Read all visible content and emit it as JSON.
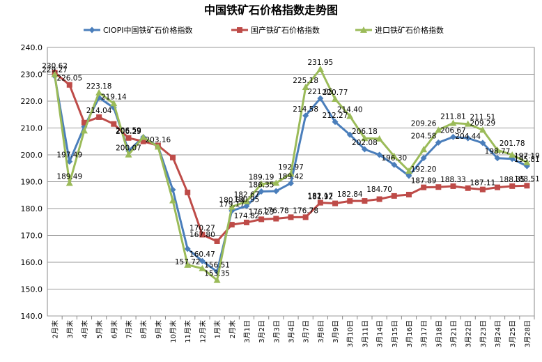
{
  "chart_data": {
    "type": "line",
    "title": "中国铁矿石价格指数走势图",
    "categories": [
      "2月末",
      "3月末",
      "4月末",
      "5月末",
      "6月末",
      "7月末",
      "8月末",
      "9月末",
      "10月末",
      "11月末",
      "12月末",
      "1月末",
      "2月末",
      "3月1日",
      "3月2日",
      "3月3日",
      "3月4日",
      "3月7日",
      "3月8日",
      "3月9日",
      "3月10日",
      "3月11日",
      "3月14日",
      "3月15日",
      "3月16日",
      "3月17日",
      "3月18日",
      "3月21日",
      "3月22日",
      "3月23日",
      "3月24日",
      "3月25日",
      "3月28日"
    ],
    "ylim": [
      140,
      240
    ],
    "yticks": [
      "140.0",
      "150.0",
      "160.0",
      "170.0",
      "180.0",
      "190.0",
      "200.0",
      "210.0",
      "220.0",
      "230.0",
      "240.0"
    ],
    "legend_position": "top",
    "grid": true,
    "series": [
      {
        "name": "CIOPI中国铁矿石价格指数",
        "color": "#4a7ebb",
        "marker": "diamond",
        "values": [
          229.27,
          197.49,
          210.5,
          221.3,
          217.5,
          201.5,
          206.59,
          203.16,
          187.0,
          165.0,
          160.47,
          156.51,
          179.17,
          180.95,
          186.35,
          186.5,
          189.42,
          214.58,
          221.05,
          212.27,
          207.5,
          202.08,
          200.0,
          196.3,
          192.2,
          198.8,
          204.58,
          206.67,
          206.2,
          204.44,
          198.77,
          198.5,
          195.81
        ]
      },
      {
        "name": "国产铁矿石价格指数",
        "color": "#be4b48",
        "marker": "square",
        "values": [
          230.62,
          226.05,
          212.0,
          214.04,
          211.5,
          206.29,
          205.0,
          203.5,
          199.0,
          186.0,
          170.27,
          167.8,
          174.0,
          174.82,
          176.0,
          176.23,
          176.78,
          176.78,
          182.17,
          181.92,
          182.8,
          182.84,
          183.5,
          184.7,
          185.2,
          187.89,
          188.0,
          188.33,
          187.6,
          187.11,
          187.9,
          188.35,
          188.51
        ]
      },
      {
        "name": "进口铁矿石价格指数",
        "color": "#9bbb59",
        "marker": "triangle",
        "values": [
          230.0,
          189.49,
          209.0,
          223.18,
          219.14,
          200.07,
          206.59,
          203.0,
          183.0,
          159.0,
          157.72,
          153.35,
          180.64,
          182.67,
          189.19,
          189.5,
          192.97,
          225.18,
          231.95,
          220.77,
          214.4,
          206.18,
          206.0,
          199.5,
          194.0,
          202.0,
          209.26,
          211.81,
          211.51,
          209.29,
          201.78,
          200.0,
          197.19
        ]
      }
    ],
    "data_labels": [
      {
        "text": "230.62",
        "x": 0,
        "y": 230.62
      },
      {
        "text": "229.27",
        "x": 0,
        "y": 229.27
      },
      {
        "text": "226.05",
        "x": 1,
        "y": 226.05
      },
      {
        "text": "197.49",
        "x": 1,
        "y": 197.49
      },
      {
        "text": "189.49",
        "x": 1,
        "y": 189.49
      },
      {
        "text": "223.18",
        "x": 3,
        "y": 223.18
      },
      {
        "text": "214.04",
        "x": 3,
        "y": 214.04
      },
      {
        "text": "219.14",
        "x": 4,
        "y": 219.14
      },
      {
        "text": "206.29",
        "x": 5,
        "y": 206.29
      },
      {
        "text": "206.59",
        "x": 5,
        "y": 206.59
      },
      {
        "text": "200.07",
        "x": 5,
        "y": 200.07
      },
      {
        "text": "203.16",
        "x": 7,
        "y": 203.16
      },
      {
        "text": "170.27",
        "x": 10,
        "y": 170.27
      },
      {
        "text": "167.80",
        "x": 10,
        "y": 167.8
      },
      {
        "text": "160.47",
        "x": 10,
        "y": 160.47
      },
      {
        "text": "157.72",
        "x": 9,
        "y": 157.72
      },
      {
        "text": "153.35",
        "x": 11,
        "y": 153.35
      },
      {
        "text": "156.51",
        "x": 11,
        "y": 156.51
      },
      {
        "text": "180.64",
        "x": 12,
        "y": 180.64
      },
      {
        "text": "179.17",
        "x": 12,
        "y": 179.17
      },
      {
        "text": "174.82",
        "x": 13,
        "y": 174.82
      },
      {
        "text": "182.67",
        "x": 13,
        "y": 182.67
      },
      {
        "text": "180.95",
        "x": 13,
        "y": 180.95
      },
      {
        "text": "186.35",
        "x": 14,
        "y": 186.35
      },
      {
        "text": "176.23",
        "x": 14,
        "y": 176.23
      },
      {
        "text": "189.19",
        "x": 14,
        "y": 189.19
      },
      {
        "text": "176.78",
        "x": 15,
        "y": 176.78
      },
      {
        "text": "192.97",
        "x": 16,
        "y": 192.97
      },
      {
        "text": "189.42",
        "x": 16,
        "y": 189.42
      },
      {
        "text": "176.78",
        "x": 17,
        "y": 176.78
      },
      {
        "text": "225.18",
        "x": 17,
        "y": 225.18
      },
      {
        "text": "214.58",
        "x": 17,
        "y": 214.58
      },
      {
        "text": "231.95",
        "x": 18,
        "y": 231.95
      },
      {
        "text": "221.05",
        "x": 18,
        "y": 221.05
      },
      {
        "text": "182.17",
        "x": 18,
        "y": 182.17
      },
      {
        "text": "181.92",
        "x": 18,
        "y": 181.92
      },
      {
        "text": "220.77",
        "x": 19,
        "y": 220.77
      },
      {
        "text": "212.27",
        "x": 19,
        "y": 212.27
      },
      {
        "text": "214.40",
        "x": 20,
        "y": 214.4
      },
      {
        "text": "182.84",
        "x": 20,
        "y": 182.84
      },
      {
        "text": "206.18",
        "x": 21,
        "y": 206.18
      },
      {
        "text": "202.08",
        "x": 21,
        "y": 202.08
      },
      {
        "text": "196.30",
        "x": 23,
        "y": 196.3
      },
      {
        "text": "184.70",
        "x": 22,
        "y": 184.7
      },
      {
        "text": "192.20",
        "x": 25,
        "y": 192.2
      },
      {
        "text": "187.89",
        "x": 25,
        "y": 187.89
      },
      {
        "text": "209.26",
        "x": 25,
        "y": 209.26
      },
      {
        "text": "204.58",
        "x": 25,
        "y": 204.58
      },
      {
        "text": "211.81",
        "x": 27,
        "y": 211.81
      },
      {
        "text": "206.67",
        "x": 27,
        "y": 206.67
      },
      {
        "text": "188.33",
        "x": 27,
        "y": 188.33
      },
      {
        "text": "204.44",
        "x": 28,
        "y": 204.44
      },
      {
        "text": "211.51",
        "x": 29,
        "y": 211.51
      },
      {
        "text": "209.29",
        "x": 29,
        "y": 209.29
      },
      {
        "text": "187.11",
        "x": 29,
        "y": 187.11
      },
      {
        "text": "198.77",
        "x": 30,
        "y": 198.77
      },
      {
        "text": "201.78",
        "x": 31,
        "y": 201.78
      },
      {
        "text": "188.35",
        "x": 31,
        "y": 188.35
      },
      {
        "text": "197.19",
        "x": 32,
        "y": 197.19
      },
      {
        "text": "195.81",
        "x": 32,
        "y": 195.81
      },
      {
        "text": "188.51",
        "x": 32,
        "y": 188.51
      }
    ]
  }
}
